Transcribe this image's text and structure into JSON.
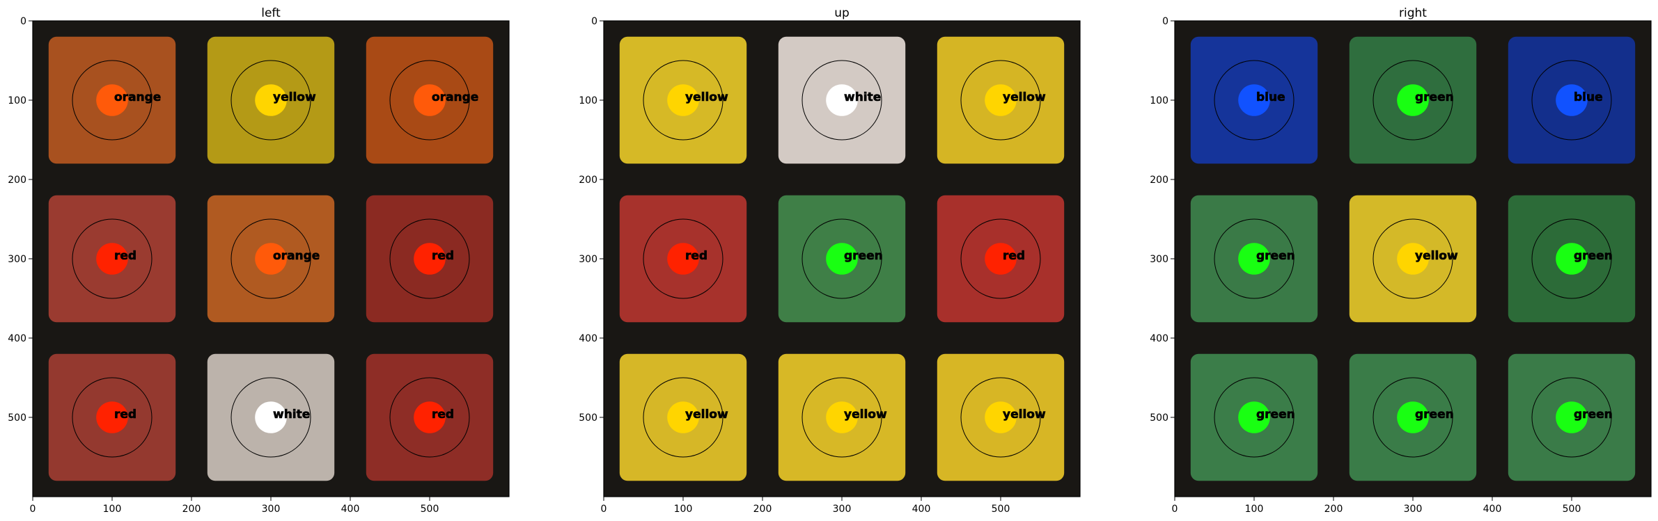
{
  "chart_data": [
    {
      "type": "image_grid",
      "title": "left",
      "xlim": [
        0,
        600
      ],
      "ylim": [
        600,
        0
      ],
      "xticks": [
        0,
        100,
        200,
        300,
        400,
        500
      ],
      "yticks": [
        0,
        100,
        200,
        300,
        400,
        500
      ],
      "background": "#d9d3cc",
      "cells": [
        {
          "x": 100,
          "y": 100,
          "label": "orange",
          "fill": "#a8511f",
          "dot": "#ff5a0a"
        },
        {
          "x": 300,
          "y": 100,
          "label": "yellow",
          "fill": "#b49a16",
          "dot": "#ffd500"
        },
        {
          "x": 500,
          "y": 100,
          "label": "orange",
          "fill": "#a94a15",
          "dot": "#ff5a0a"
        },
        {
          "x": 100,
          "y": 300,
          "label": "red",
          "fill": "#9a3b30",
          "dot": "#ff2200"
        },
        {
          "x": 300,
          "y": 300,
          "label": "orange",
          "fill": "#b05a21",
          "dot": "#ff5a0a"
        },
        {
          "x": 500,
          "y": 300,
          "label": "red",
          "fill": "#8b2a22",
          "dot": "#ff2200"
        },
        {
          "x": 100,
          "y": 500,
          "label": "red",
          "fill": "#94392f",
          "dot": "#ff2200"
        },
        {
          "x": 300,
          "y": 500,
          "label": "white",
          "fill": "#bcb3ab",
          "dot": "#ffffff"
        },
        {
          "x": 500,
          "y": 500,
          "label": "red",
          "fill": "#8e2d26",
          "dot": "#ff2200"
        }
      ]
    },
    {
      "type": "image_grid",
      "title": "up",
      "xlim": [
        0,
        600
      ],
      "ylim": [
        600,
        0
      ],
      "xticks": [
        0,
        100,
        200,
        300,
        400,
        500
      ],
      "yticks": [
        0,
        100,
        200,
        300,
        400,
        500
      ],
      "background": "#ddd3c6",
      "cells": [
        {
          "x": 100,
          "y": 100,
          "label": "yellow",
          "fill": "#d6b926",
          "dot": "#ffd500"
        },
        {
          "x": 300,
          "y": 100,
          "label": "white",
          "fill": "#d3cac4",
          "dot": "#ffffff"
        },
        {
          "x": 500,
          "y": 100,
          "label": "yellow",
          "fill": "#d5b524",
          "dot": "#ffd500"
        },
        {
          "x": 100,
          "y": 300,
          "label": "red",
          "fill": "#a7322c",
          "dot": "#ff2200"
        },
        {
          "x": 300,
          "y": 300,
          "label": "green",
          "fill": "#3f7f47",
          "dot": "#19ff12"
        },
        {
          "x": 500,
          "y": 300,
          "label": "red",
          "fill": "#a8302b",
          "dot": "#ff2200"
        },
        {
          "x": 100,
          "y": 500,
          "label": "yellow",
          "fill": "#d6b727",
          "dot": "#ffd500"
        },
        {
          "x": 300,
          "y": 500,
          "label": "yellow",
          "fill": "#d7b826",
          "dot": "#ffd500"
        },
        {
          "x": 500,
          "y": 500,
          "label": "yellow",
          "fill": "#d7b625",
          "dot": "#ffd500"
        }
      ]
    },
    {
      "type": "image_grid",
      "title": "right",
      "xlim": [
        0,
        600
      ],
      "ylim": [
        600,
        0
      ],
      "xticks": [
        0,
        100,
        200,
        300,
        400,
        500
      ],
      "yticks": [
        0,
        100,
        200,
        300,
        400,
        500
      ],
      "background": "#1f2a26",
      "cells": [
        {
          "x": 100,
          "y": 100,
          "label": "blue",
          "fill": "#15349a",
          "dot": "#1152ff"
        },
        {
          "x": 300,
          "y": 100,
          "label": "green",
          "fill": "#2f6e3e",
          "dot": "#19ff12"
        },
        {
          "x": 500,
          "y": 100,
          "label": "blue",
          "fill": "#132f8c",
          "dot": "#1152ff"
        },
        {
          "x": 100,
          "y": 300,
          "label": "green",
          "fill": "#3a7a47",
          "dot": "#19ff12"
        },
        {
          "x": 300,
          "y": 300,
          "label": "yellow",
          "fill": "#d4b928",
          "dot": "#ffd500"
        },
        {
          "x": 500,
          "y": 300,
          "label": "green",
          "fill": "#2c6b38",
          "dot": "#19ff12"
        },
        {
          "x": 100,
          "y": 500,
          "label": "green",
          "fill": "#3b7d49",
          "dot": "#19ff12"
        },
        {
          "x": 300,
          "y": 500,
          "label": "green",
          "fill": "#3a7c48",
          "dot": "#19ff12"
        },
        {
          "x": 500,
          "y": 500,
          "label": "green",
          "fill": "#3a7b48",
          "dot": "#19ff12"
        }
      ]
    }
  ],
  "colors": {
    "axis": "#000000",
    "sticker_gap": "#191714"
  }
}
